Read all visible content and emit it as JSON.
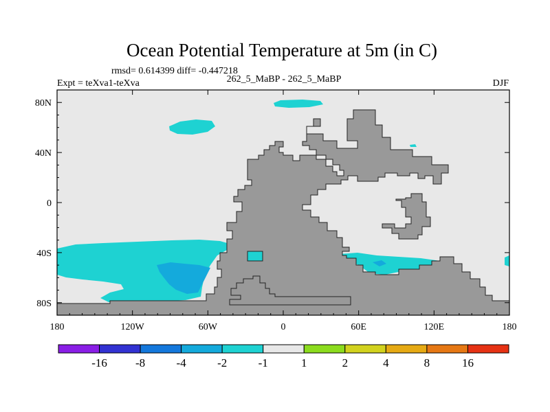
{
  "chart_data": {
    "type": "heatmap",
    "title": "Ocean Potential Temperature at 5m (in C)",
    "stats_label": "rmsd= 0.614399 diff= -0.447218",
    "experiment_label": "Expt = teXva1-teXva",
    "case_label": "262_5_MaBP - 262_5_MaBP",
    "season_label": "DJF",
    "xlim": [
      -180,
      180
    ],
    "ylim": [
      -90,
      90
    ],
    "x_ticks": [
      {
        "value": -180,
        "label": "180"
      },
      {
        "value": -120,
        "label": "120W"
      },
      {
        "value": -60,
        "label": "60W"
      },
      {
        "value": 0,
        "label": "0"
      },
      {
        "value": 60,
        "label": "60E"
      },
      {
        "value": 120,
        "label": "120E"
      },
      {
        "value": 180,
        "label": "180"
      }
    ],
    "y_ticks": [
      {
        "value": 80,
        "label": "80N"
      },
      {
        "value": 40,
        "label": "40N"
      },
      {
        "value": 0,
        "label": "0"
      },
      {
        "value": -40,
        "label": "40S"
      },
      {
        "value": -80,
        "label": "80S"
      }
    ],
    "colorbar": {
      "colors": [
        "#8a1ee6",
        "#3232d2",
        "#1478dc",
        "#14aadc",
        "#1ed2d2",
        "#e8e8e8",
        "#8cdc1e",
        "#d2d21e",
        "#e6aa14",
        "#e67814",
        "#e63214"
      ],
      "labels": [
        "-16",
        "-8",
        "-4",
        "-2",
        "-1",
        "1",
        "2",
        "4",
        "8",
        "16"
      ]
    },
    "background_color": "#e8e8e8",
    "land_color": "#999999",
    "fields": [
      {
        "label": "Land masses",
        "color": "#999999"
      },
      {
        "label": "-2 to -1 anomaly",
        "color": "#1ed2d2"
      },
      {
        "label": "-4 to -2 anomaly",
        "color": "#14aadc"
      }
    ]
  }
}
